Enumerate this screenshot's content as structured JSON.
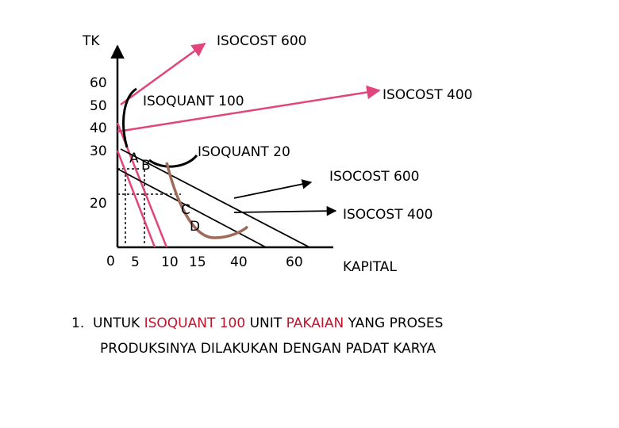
{
  "axes": {
    "y_label": "TK",
    "x_label": "KAPITAL",
    "y_ticks": [
      "60",
      "50",
      "40",
      "30",
      "20"
    ],
    "x_ticks": [
      "0",
      "5",
      "10",
      "15",
      "40",
      "60"
    ]
  },
  "points": [
    "A",
    "B",
    "C",
    "D"
  ],
  "curve_labels": {
    "isocost_600_top": "ISOCOST 600",
    "isocost_400_top": "ISOCOST 400",
    "isoquant_100": "ISOQUANT 100",
    "isoquant_20": "ISOQUANT 20",
    "isocost_600_right": "ISOCOST 600",
    "isocost_400_right": "ISOCOST 400"
  },
  "caption": {
    "number": "1.",
    "part1": "UNTUK",
    "part2": "ISOQUANT 100",
    "part3": "UNIT",
    "part4": "PAKAIAN",
    "part5": "YANG PROSES",
    "line2": "PRODUKSINYA DILAKUKAN DENGAN PADAT KARYA"
  },
  "colors": {
    "pink": "#e0457b",
    "curve": "#000000",
    "brown": "#a06a5a",
    "highlight": "#c0142b"
  }
}
